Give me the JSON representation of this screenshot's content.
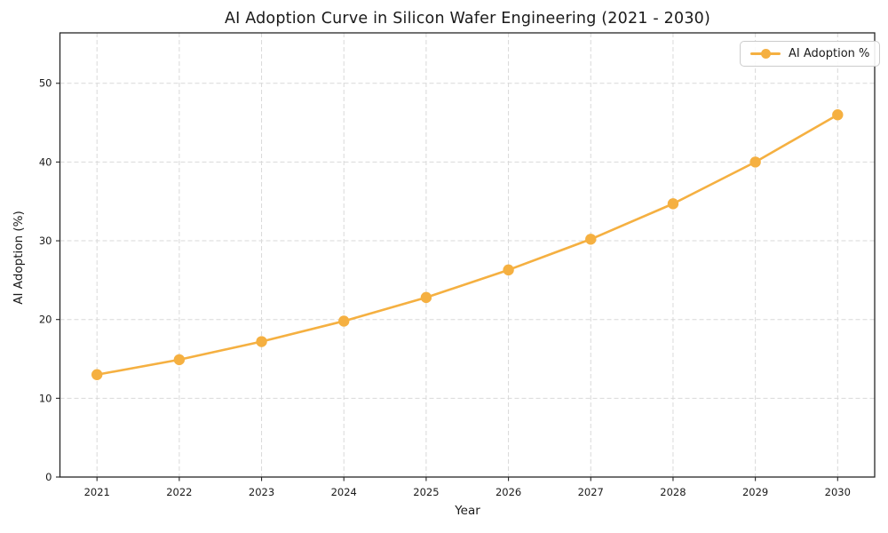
{
  "chart_data": {
    "type": "line",
    "title": "AI Adoption Curve in Silicon Wafer Engineering (2021 - 2030)",
    "xlabel": "Year",
    "ylabel": "AI Adoption (%)",
    "x": [
      2021,
      2022,
      2023,
      2024,
      2025,
      2026,
      2027,
      2028,
      2029,
      2030
    ],
    "series": [
      {
        "name": "AI Adoption %",
        "values": [
          13.0,
          14.9,
          17.2,
          19.8,
          22.8,
          26.3,
          30.2,
          34.7,
          40.0,
          46.0
        ],
        "marker": "circle"
      }
    ],
    "legend": {
      "position": "upper right",
      "entries": [
        "AI Adoption %"
      ]
    },
    "xlim": [
      2020.55,
      2030.45
    ],
    "ylim": [
      0,
      56.4
    ],
    "yticks": [
      0,
      10,
      20,
      30,
      40,
      50
    ],
    "xticks": [
      2021,
      2022,
      2023,
      2024,
      2025,
      2026,
      2027,
      2028,
      2029,
      2030
    ],
    "grid": "dashed, both axes"
  },
  "colors": {
    "series": "#F5B041",
    "grid": "#D9D9D9",
    "spine": "#262626",
    "text": "#1A1A1A",
    "legend_border": "#CCCCCC",
    "background": "#FFFFFF"
  }
}
